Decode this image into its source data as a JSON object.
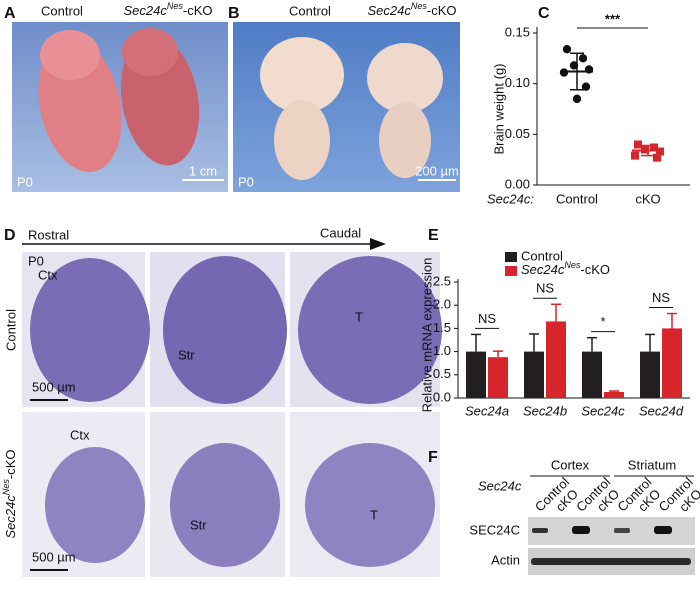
{
  "panels": {
    "a": "A",
    "b": "B",
    "c": "C",
    "d": "D",
    "e": "E",
    "f": "F"
  },
  "panel_a": {
    "control": "Control",
    "cko": {
      "gene": "Sec24c",
      "sup": "Nes",
      "suffix": "-cKO"
    },
    "age": "P0",
    "scale": "1 cm"
  },
  "panel_b": {
    "control": "Control",
    "cko": {
      "gene": "Sec24c",
      "sup": "Nes",
      "suffix": "-cKO"
    },
    "age": "P0",
    "scale": "200 µm"
  },
  "panel_d": {
    "rostral": "Rostral",
    "caudal": "Caudal",
    "age": "P0",
    "control": "Control",
    "cko": {
      "gene": "Sec24c",
      "sup": "Nes",
      "suffix": "-cKO"
    },
    "regions_top": [
      "Ctx",
      "Str",
      "T"
    ],
    "regions_bottom": [
      "Ctx",
      "Str",
      "T"
    ],
    "scale_top": "500 µm",
    "scale_bottom": "500 µm"
  },
  "panel_f": {
    "groups": [
      "Cortex",
      "Striatum"
    ],
    "gene": "Sec24c",
    "columns": [
      "Control",
      "cKO",
      "Control",
      "cKO",
      "Control",
      "cKO",
      "Control",
      "cKO"
    ],
    "rows": [
      "SEC24C",
      "Actin"
    ]
  },
  "chart_data": [
    {
      "type": "dot",
      "ylabel": "Brain weight (g)",
      "x_prefix": "Sec24c:",
      "categories": [
        "Control",
        "cKO"
      ],
      "colors": [
        "#111111",
        "#d7262b"
      ],
      "points": [
        [
          0.134,
          0.125,
          0.118,
          0.114,
          0.111,
          0.097,
          0.085
        ],
        [
          0.04,
          0.037,
          0.035,
          0.033,
          0.029,
          0.027
        ]
      ],
      "mean": [
        0.112,
        0.034
      ],
      "sd": [
        0.018,
        0.005
      ],
      "ylim": [
        0,
        0.15
      ],
      "yticks": [
        {
          "value": 0,
          "label": "0.00"
        },
        {
          "value": 0.05,
          "label": "0.05"
        },
        {
          "value": 0.1,
          "label": "0.10"
        },
        {
          "value": 0.15,
          "label": "0.15"
        }
      ],
      "annotation": "***"
    },
    {
      "type": "bar",
      "ylabel": "Relative mRNA expression",
      "categories": [
        "Sec24a",
        "Sec24b",
        "Sec24c",
        "Sec24d"
      ],
      "series": [
        {
          "name": "Control",
          "color": "#231f20",
          "values": [
            1,
            1,
            1,
            1
          ],
          "errors": [
            0.37,
            0.38,
            0.3,
            0.37
          ]
        },
        {
          "name": {
            "gene": "Sec24c",
            "sup": "Nes",
            "suffix": "-cKO"
          },
          "color": "#d7262b",
          "values": [
            0.88,
            1.65,
            0.13,
            1.5
          ],
          "errors": [
            0.13,
            0.37,
            0.02,
            0.32
          ]
        }
      ],
      "ylim": [
        0,
        2.5
      ],
      "yticks": [
        {
          "value": 0,
          "label": "0.0"
        },
        {
          "value": 0.5,
          "label": "0.5"
        },
        {
          "value": 1,
          "label": "1.0"
        },
        {
          "value": 1.5,
          "label": "1.5"
        },
        {
          "value": 2,
          "label": "2.0"
        },
        {
          "value": 2.5,
          "label": "2.5"
        }
      ],
      "annotations": [
        "NS",
        "NS",
        "*",
        "NS"
      ]
    }
  ]
}
